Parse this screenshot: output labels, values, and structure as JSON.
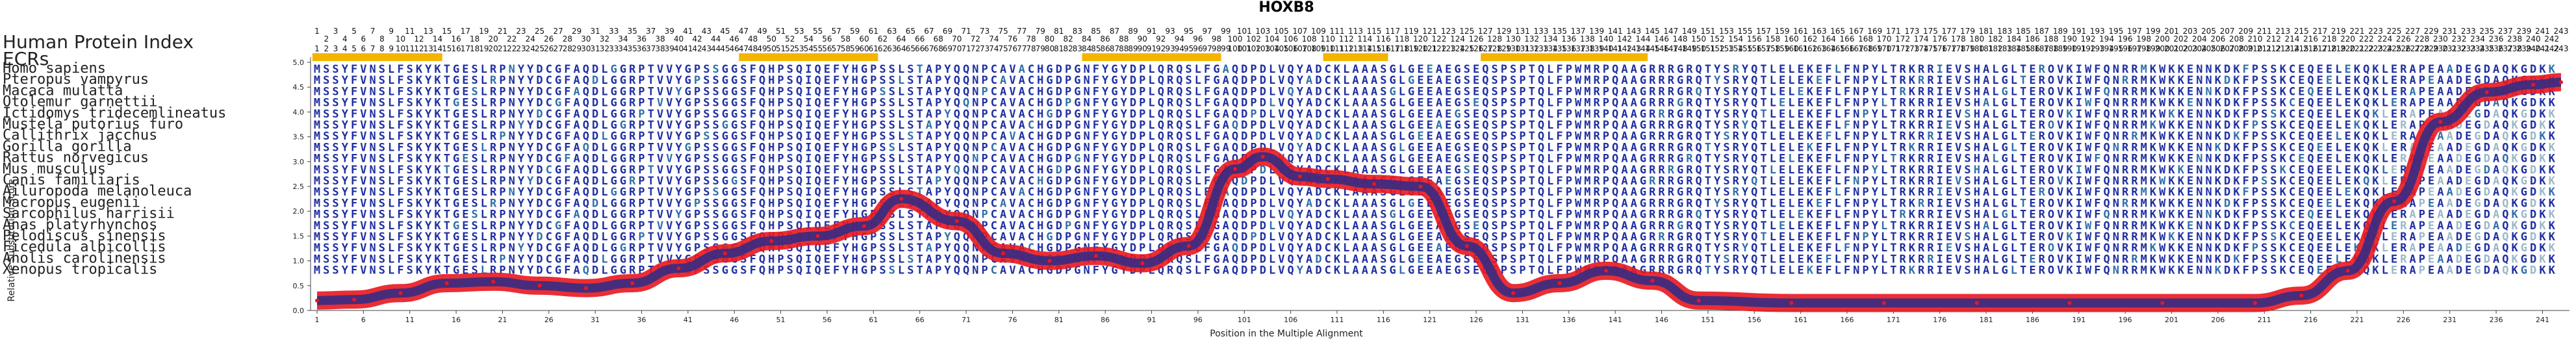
{
  "chart_data": {
    "type": "line",
    "title": "HOXB8",
    "header_label": "Human Protein Index",
    "ecr_label": "ECRs",
    "xlabel": "Position in the Multiple Alignment",
    "ylabel": "Relative Substitution Score",
    "ylim": [
      0,
      5
    ],
    "yticks": [
      "0.0",
      "0.5",
      "1.0",
      "1.5",
      "2.0",
      "2.5",
      "3.0",
      "3.5",
      "4.0",
      "4.5",
      "5.0"
    ],
    "xlim": [
      1,
      243
    ],
    "xticks": [
      "1",
      "6",
      "11",
      "16",
      "21",
      "26",
      "31",
      "36",
      "41",
      "46",
      "51",
      "56",
      "61",
      "66",
      "71",
      "76",
      "81",
      "86",
      "91",
      "96",
      "101",
      "106",
      "111",
      "116",
      "121",
      "126",
      "131",
      "136",
      "141",
      "146",
      "151",
      "156",
      "161",
      "166",
      "171",
      "176",
      "181",
      "186",
      "191",
      "196",
      "201",
      "206",
      "211",
      "216",
      "221",
      "226",
      "231",
      "236",
      "241"
    ],
    "species": [
      "Homo sapiens",
      "Pteropus vampyrus",
      "Macaca mulatta",
      "Otolemur garnettii",
      "Ictidomys tridecemlineatus",
      "Mustela putorius furo",
      "Callithrix jacchus",
      "Gorilla gorilla",
      "Rattus norvegicus",
      "Mus musculus",
      "Canis familiaris",
      "Ailuropoda melanoleuca",
      "Macropus eugenii",
      "Sarcophilus harrisii",
      "Anas platyrhynchos",
      "Pelodiscus sinensis",
      "Ficedula albicollis",
      "Anolis carolinensis",
      "Xenopus tropicalis"
    ],
    "sequence": "MSSYFVNSLFSKYKTGESLRPNYYDCGFAQDLGGRPTVVYGPSSGGSFQHPSQIQEFYHGPSSLSTAPYQQNPCAVACHGDPGNFYGYDPLQRQSLFGAQDPDLVQYADCKLAAASGLGEEAEGSEQSPSPTQLFPWMRPQAAGRRRGRQTYSRYQTLELEKEFLFNPYLTRKRRIEVSHALGLTEROVKIWFQNRRMKWKKENNKDKFPSSKCEQEELEKQKLERAPEAADEGDAQKGDKK",
    "ecr_ranges": [
      [
        1,
        14
      ],
      [
        47,
        61
      ],
      [
        84,
        98
      ],
      [
        110,
        116
      ],
      [
        127,
        144
      ]
    ],
    "series": [
      {
        "x": [
          1,
          5,
          10,
          15,
          20,
          25,
          30,
          35,
          40,
          45,
          50,
          55,
          60,
          64,
          70,
          75,
          80,
          85,
          90,
          95,
          100,
          103,
          107,
          110,
          115,
          120,
          125,
          130,
          135,
          140,
          145,
          150,
          160,
          170,
          180,
          190,
          200,
          210,
          215,
          220,
          225,
          230,
          235,
          240,
          243
        ],
        "values": [
          0.2,
          0.22,
          0.35,
          0.55,
          0.58,
          0.5,
          0.45,
          0.55,
          0.85,
          1.15,
          1.4,
          1.5,
          1.7,
          2.25,
          1.8,
          1.15,
          1.0,
          1.1,
          0.95,
          1.3,
          2.85,
          3.1,
          2.7,
          2.65,
          2.55,
          2.5,
          1.3,
          0.35,
          0.55,
          0.8,
          0.6,
          0.2,
          0.15,
          0.15,
          0.15,
          0.15,
          0.15,
          0.15,
          0.3,
          0.8,
          2.2,
          3.8,
          4.4,
          4.55,
          4.6
        ]
      }
    ],
    "colors": {
      "curve_outer": "#e8171e",
      "curve_inner": "#2b2c8a",
      "ecr_bar": "#f5b400",
      "seq_high": "#1f2fa0",
      "seq_mid": "#2f6fa8",
      "seq_low": "#9bb7c7"
    }
  }
}
